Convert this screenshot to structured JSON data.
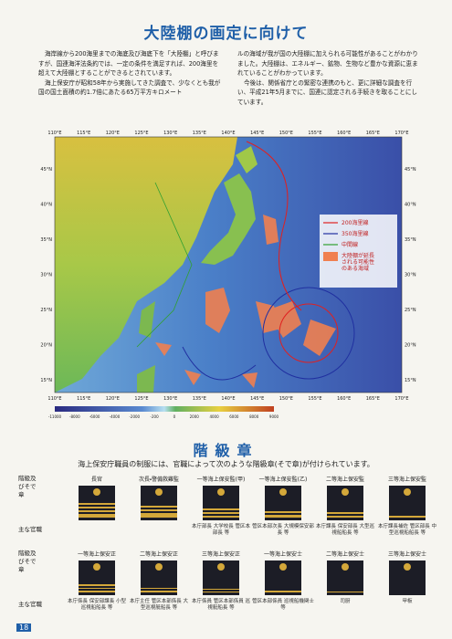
{
  "page_number": "18",
  "header": {
    "title": "大陸棚の画定に向けて"
  },
  "intro": {
    "left": [
      "海岸線から200海里までの海底及び海底下を「大陸棚」と呼びますが、国連海洋法条約では、一定の条件を満足すれば、200海里を超えて大陸棚とすることができるとされています。",
      "海上保安庁が昭和58年から実施してきた調査で、少なくとも我が国の国土面積の約1.7倍にあたる65万平方キロメート"
    ],
    "right": [
      "ルの海域が我が国の大陸棚に加えられる可能性があることがわかりました。大陸棚は、エネルギー、鉱物、生物など豊かな資源に恵まれていることがわかっています。",
      "今後は、関係省庁との緊密な連携のもと、更に詳細な調査を行い、平成21年5月までに、国連に認定される手続きを取ることにしています。"
    ]
  },
  "map": {
    "lon_labels": [
      "110°E",
      "115°E",
      "120°E",
      "125°E",
      "130°E",
      "135°E",
      "140°E",
      "145°E",
      "150°E",
      "155°E",
      "160°E",
      "165°E",
      "170°E"
    ],
    "lat_labels": [
      "45°N",
      "40°N",
      "35°N",
      "30°N",
      "25°N",
      "20°N",
      "15°N"
    ],
    "legend": [
      "200海里線",
      "350海里線",
      "中間線",
      "大陸棚が延長される可能性のある海域"
    ],
    "scale_labels": [
      "-11000",
      "-8000",
      "-6000",
      "-4000",
      "-2000",
      "-200",
      "0",
      "2000",
      "4000",
      "6000",
      "8000",
      "9000"
    ]
  },
  "ranks": {
    "title": "階級章",
    "subtitle": "海上保安庁職員の制服には、官職によって次のような階級章(そで章)が付けられています。",
    "row_label": "階級及びそで章",
    "duty_label": "主な官職",
    "rows": [
      [
        {
          "rank": "長官",
          "duties": ""
        },
        {
          "rank": "次長・警備救難監",
          "duties": ""
        },
        {
          "rank": "一等海上保安監(甲)",
          "duties": "本庁部長 大学校長 管区本部長 等"
        },
        {
          "rank": "一等海上保安監(乙)",
          "duties": "管区本部次長 大規模保安部長 等"
        },
        {
          "rank": "二等海上保安監",
          "duties": "本庁課長 保安部長 大型巡視船船長 等"
        },
        {
          "rank": "三等海上保安監",
          "duties": "本庁課長補佐 管区部長 中型巡視船船長 等"
        }
      ],
      [
        {
          "rank": "一等海上保安正",
          "duties": "本庁係長 保安部課長 小型巡視船船長 等"
        },
        {
          "rank": "二等海上保安正",
          "duties": "本庁主任 管区本部係長 大型巡視艇船長 等"
        },
        {
          "rank": "三等海上保安正",
          "duties": "本庁係員 管区本部係員 巡視艇船長 等"
        },
        {
          "rank": "一等海上保安士",
          "duties": "管区本部係員 巡視船機関士 等"
        },
        {
          "rank": "二等海上保安士",
          "duties": "司厨"
        },
        {
          "rank": "三等海上保安士",
          "duties": "甲板"
        }
      ]
    ]
  }
}
